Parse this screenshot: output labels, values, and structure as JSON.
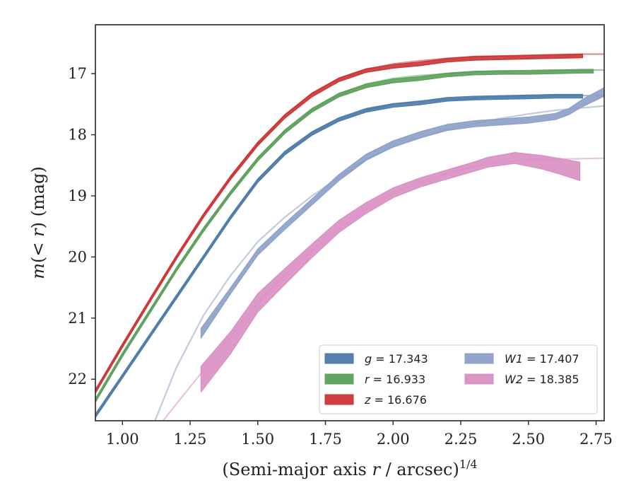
{
  "chart_data": {
    "type": "line",
    "xlabel": "(Semi-major axis r / arcsec)^{1/4}",
    "ylabel": "m(< r) (mag)",
    "xlim": [
      0.9,
      2.78
    ],
    "ylim": [
      22.68,
      16.2
    ],
    "y_inverted": true,
    "grid": false,
    "legend_position": "lower-right",
    "xticks": [
      "1.00",
      "1.25",
      "1.50",
      "1.75",
      "2.00",
      "2.25",
      "2.50",
      "2.75"
    ],
    "yticks": [
      "17",
      "18",
      "19",
      "20",
      "21",
      "22"
    ],
    "series": [
      {
        "name": "g = 17.343",
        "legend_label": "g = 17.343",
        "color": "#4c7aa8",
        "model_x": [
          0.9,
          1.0,
          1.1,
          1.2,
          1.3,
          1.4,
          1.5,
          1.6,
          1.7,
          1.8,
          1.9,
          2.0,
          2.1,
          2.2,
          2.3,
          2.4,
          2.5,
          2.6,
          2.7,
          2.78
        ],
        "model_y": [
          22.6,
          21.95,
          21.3,
          20.65,
          20.0,
          19.35,
          18.75,
          18.3,
          17.98,
          17.75,
          17.6,
          17.5,
          17.45,
          17.42,
          17.4,
          17.38,
          17.37,
          17.36,
          17.36,
          17.36
        ],
        "data_x": [
          0.9,
          1.0,
          1.1,
          1.2,
          1.3,
          1.4,
          1.5,
          1.6,
          1.7,
          1.8,
          1.9,
          2.0,
          2.1,
          2.2,
          2.3,
          2.4,
          2.5,
          2.6,
          2.7
        ],
        "data_y": [
          22.6,
          21.95,
          21.3,
          20.65,
          20.0,
          19.35,
          18.75,
          18.3,
          17.98,
          17.75,
          17.6,
          17.52,
          17.48,
          17.42,
          17.4,
          17.39,
          17.38,
          17.37,
          17.37
        ],
        "data_width": [
          0.06,
          0.06,
          0.06,
          0.06,
          0.06,
          0.06,
          0.06,
          0.06,
          0.06,
          0.06,
          0.06,
          0.06,
          0.06,
          0.06,
          0.06,
          0.06,
          0.06,
          0.06,
          0.06
        ]
      },
      {
        "name": "r = 16.933",
        "legend_label": "r = 16.933",
        "color": "#5aa05a",
        "model_x": [
          0.9,
          1.0,
          1.1,
          1.2,
          1.3,
          1.4,
          1.5,
          1.6,
          1.7,
          1.8,
          1.9,
          2.0,
          2.1,
          2.2,
          2.3,
          2.4,
          2.5,
          2.6,
          2.7,
          2.78
        ],
        "model_y": [
          22.35,
          21.6,
          20.9,
          20.2,
          19.55,
          18.95,
          18.4,
          17.95,
          17.6,
          17.35,
          17.17,
          17.08,
          17.03,
          17.0,
          16.98,
          16.96,
          16.95,
          16.94,
          16.94,
          16.94
        ],
        "data_x": [
          0.9,
          1.0,
          1.1,
          1.2,
          1.3,
          1.4,
          1.5,
          1.6,
          1.7,
          1.8,
          1.9,
          2.0,
          2.1,
          2.2,
          2.3,
          2.4,
          2.5,
          2.6,
          2.7,
          2.74
        ],
        "data_y": [
          22.35,
          21.6,
          20.9,
          20.2,
          19.55,
          18.95,
          18.4,
          17.95,
          17.6,
          17.35,
          17.2,
          17.12,
          17.08,
          17.02,
          16.99,
          16.98,
          16.98,
          16.97,
          16.96,
          16.96
        ],
        "data_width": [
          0.06,
          0.06,
          0.06,
          0.06,
          0.06,
          0.06,
          0.06,
          0.06,
          0.06,
          0.06,
          0.06,
          0.06,
          0.06,
          0.06,
          0.06,
          0.06,
          0.06,
          0.06,
          0.06,
          0.06
        ]
      },
      {
        "name": "z = 16.676",
        "legend_label": "z = 16.676",
        "color": "#cc3333",
        "model_x": [
          0.9,
          1.0,
          1.1,
          1.2,
          1.3,
          1.4,
          1.5,
          1.6,
          1.7,
          1.8,
          1.9,
          2.0,
          2.1,
          2.2,
          2.3,
          2.4,
          2.5,
          2.6,
          2.7,
          2.78
        ],
        "model_y": [
          22.2,
          21.45,
          20.72,
          20.0,
          19.32,
          18.7,
          18.15,
          17.68,
          17.32,
          17.08,
          16.93,
          16.84,
          16.79,
          16.75,
          16.72,
          16.71,
          16.7,
          16.69,
          16.68,
          16.68
        ],
        "data_x": [
          0.9,
          1.0,
          1.1,
          1.2,
          1.3,
          1.4,
          1.5,
          1.6,
          1.7,
          1.8,
          1.9,
          2.0,
          2.1,
          2.2,
          2.3,
          2.4,
          2.5,
          2.6,
          2.7
        ],
        "data_y": [
          22.2,
          21.45,
          20.72,
          20.0,
          19.32,
          18.7,
          18.15,
          17.7,
          17.35,
          17.1,
          16.95,
          16.88,
          16.84,
          16.78,
          16.75,
          16.74,
          16.73,
          16.72,
          16.71
        ],
        "data_width": [
          0.06,
          0.06,
          0.06,
          0.06,
          0.06,
          0.06,
          0.06,
          0.06,
          0.06,
          0.06,
          0.06,
          0.06,
          0.06,
          0.06,
          0.06,
          0.06,
          0.06,
          0.06,
          0.06
        ]
      },
      {
        "name": "W1 = 17.407",
        "legend_label": "W1 = 17.407",
        "color": "#8c9fc8",
        "model_x": [
          1.12,
          1.2,
          1.3,
          1.4,
          1.5,
          1.6,
          1.7,
          1.8,
          1.9,
          2.0,
          2.1,
          2.2,
          2.3,
          2.4,
          2.5,
          2.6,
          2.7,
          2.78
        ],
        "model_y": [
          22.68,
          21.8,
          20.95,
          20.3,
          19.75,
          19.35,
          19.0,
          18.7,
          18.4,
          18.2,
          18.05,
          17.92,
          17.82,
          17.73,
          17.66,
          17.6,
          17.56,
          17.53
        ],
        "data_x": [
          1.29,
          1.4,
          1.5,
          1.6,
          1.7,
          1.8,
          1.9,
          2.0,
          2.1,
          2.2,
          2.3,
          2.4,
          2.5,
          2.6,
          2.65,
          2.7,
          2.78
        ],
        "data_y": [
          21.25,
          20.55,
          19.92,
          19.5,
          19.1,
          18.7,
          18.37,
          18.15,
          18.0,
          17.88,
          17.82,
          17.79,
          17.76,
          17.7,
          17.62,
          17.48,
          17.3
        ],
        "data_width": [
          0.16,
          0.1,
          0.1,
          0.1,
          0.1,
          0.1,
          0.1,
          0.1,
          0.1,
          0.1,
          0.1,
          0.1,
          0.1,
          0.1,
          0.1,
          0.12,
          0.14
        ]
      },
      {
        "name": "W2 = 18.385",
        "legend_label": "W2 = 18.385",
        "color": "#d98fc2",
        "model_x": [
          1.15,
          1.2,
          1.3,
          1.4,
          1.5,
          1.6,
          1.7,
          1.8,
          1.9,
          2.0,
          2.1,
          2.2,
          2.3,
          2.4,
          2.5,
          2.6,
          2.7,
          2.78
        ],
        "model_y": [
          22.68,
          22.4,
          21.85,
          21.3,
          20.75,
          20.3,
          19.9,
          19.55,
          19.22,
          18.95,
          18.77,
          18.63,
          18.52,
          18.45,
          18.41,
          18.4,
          18.39,
          18.385
        ],
        "data_x": [
          1.29,
          1.4,
          1.5,
          1.6,
          1.7,
          1.8,
          1.9,
          2.0,
          2.1,
          2.2,
          2.3,
          2.35,
          2.45,
          2.55,
          2.62,
          2.69
        ],
        "data_y": [
          22.0,
          21.4,
          20.75,
          20.32,
          19.9,
          19.5,
          19.2,
          18.95,
          18.78,
          18.65,
          18.52,
          18.45,
          18.38,
          18.45,
          18.52,
          18.6
        ],
        "data_width": [
          0.42,
          0.36,
          0.3,
          0.26,
          0.22,
          0.2,
          0.18,
          0.16,
          0.15,
          0.15,
          0.15,
          0.16,
          0.18,
          0.22,
          0.26,
          0.3
        ]
      }
    ]
  }
}
